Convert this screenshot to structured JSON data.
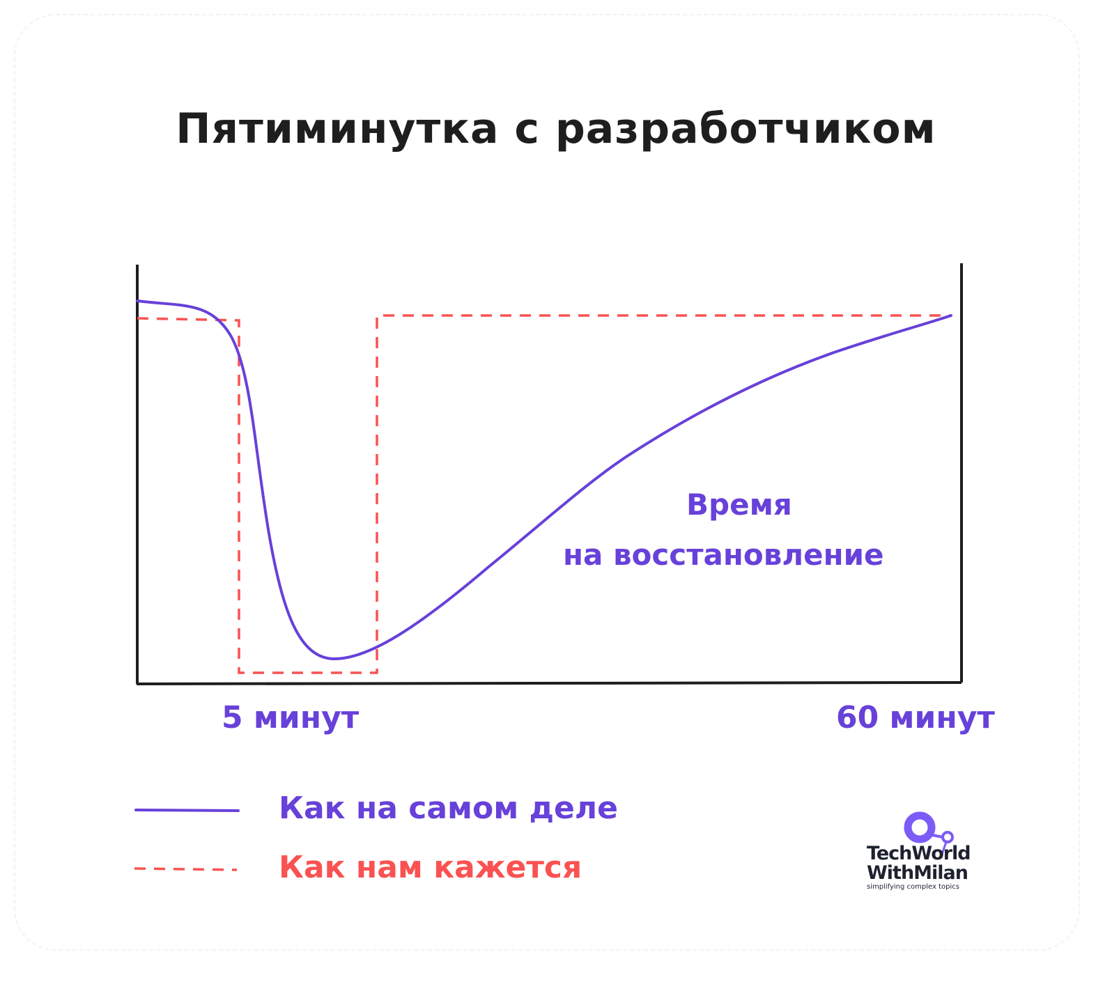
{
  "title": "Пятиминутка с разработчиком",
  "annotation": {
    "line1": "Время",
    "line2": "на восстановление"
  },
  "x_labels": {
    "start": "5 минут",
    "end": "60 минут"
  },
  "legend": [
    {
      "label": "Как на самом деле",
      "style": "solid",
      "color": "#6741d9"
    },
    {
      "label": "Как нам кажется",
      "style": "dashed",
      "color": "#fa5252"
    }
  ],
  "logo": {
    "line1": "TechWorld",
    "line2": "WithMilan",
    "tagline": "simplifying complex topics",
    "color": "#7c5cf6"
  },
  "colors": {
    "axis": "#1e1e1e",
    "actual": "#6741d9",
    "perceived": "#fa5252"
  }
}
